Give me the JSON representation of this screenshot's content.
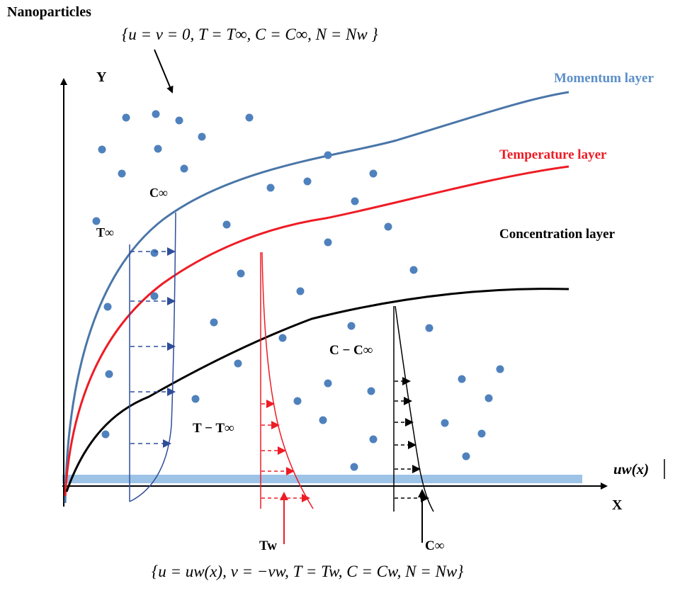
{
  "diagram": {
    "title": "Nanoparticles",
    "top_condition": "{u = v = 0, T = T∞, C = C∞, N = Nw }",
    "bottom_condition": "{u = uw(x), v = −vw, T = Tw, C = Cw, N = Nw}",
    "axis_y": "Y",
    "axis_x": "X",
    "wall_velocity": "uw(x)",
    "layers": {
      "momentum": {
        "label": "Momentum layer",
        "color": "#4a76a8"
      },
      "temperature": {
        "label": "Temperature layer",
        "color": "#ee1c25"
      },
      "concentration": {
        "label": "Concentration layer",
        "color": "#000000"
      }
    },
    "labels": {
      "c_inf_top": "C∞",
      "t_inf": "T∞",
      "t_minus_tinf": "T − T∞",
      "c_minus_cinf": "C − C∞",
      "t_wall": "Tw",
      "c_inf_bottom": "C∞"
    },
    "colors": {
      "particle": "#4f81bd",
      "wall": "#9dc3e6",
      "momentum_profile": "#2f4d9a"
    }
  }
}
